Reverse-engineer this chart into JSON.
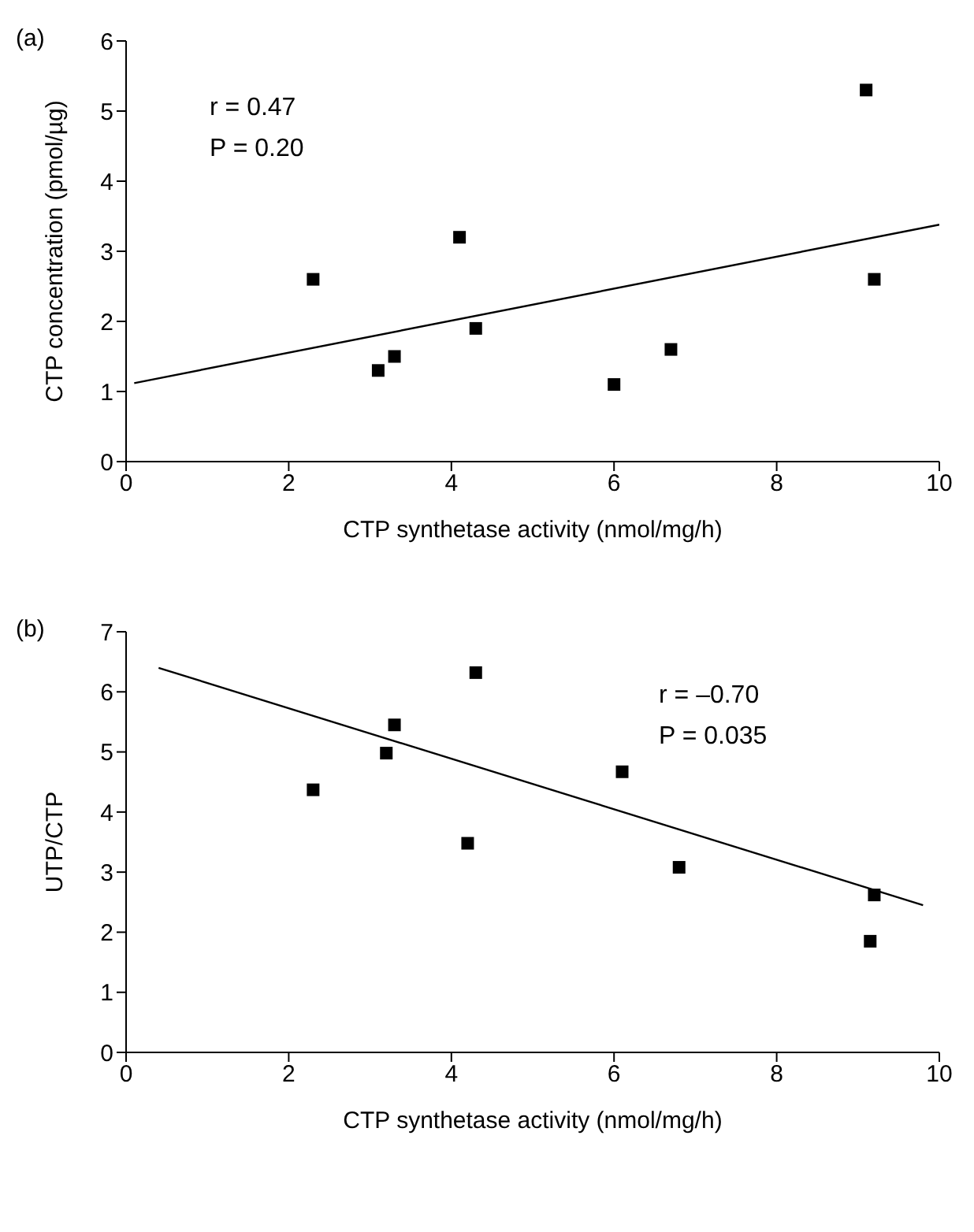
{
  "chart_data": [
    {
      "type": "scatter",
      "title": "(a)",
      "xlabel": "CTP synthetase activity (nmol/mg/h)",
      "ylabel": "CTP concentration (pmol/µg)",
      "annotations": [
        "r = 0.47",
        "P = 0.20"
      ],
      "xlim": [
        0,
        10
      ],
      "xticks": [
        0,
        2,
        4,
        6,
        8,
        10
      ],
      "ylim": [
        0,
        6
      ],
      "yticks": [
        0,
        1,
        2,
        3,
        4,
        5,
        6
      ],
      "grid": false,
      "series": [
        {
          "type": "scatter",
          "color": "#000000",
          "marker": "square",
          "x": [
            2.3,
            3.1,
            3.3,
            4.1,
            4.3,
            6.0,
            6.7,
            9.1,
            9.2
          ],
          "values": [
            2.6,
            1.3,
            1.5,
            3.2,
            1.9,
            1.1,
            1.6,
            5.3,
            2.6
          ]
        },
        {
          "type": "line",
          "color": "#000000",
          "marker": "none",
          "x": [
            0.1,
            10
          ],
          "values": [
            1.12,
            3.38
          ]
        }
      ]
    },
    {
      "type": "scatter",
      "title": "(b)",
      "xlabel": "CTP synthetase activity (nmol/mg/h)",
      "ylabel": "UTP/CTP",
      "annotations": [
        "r = –0.70",
        "P = 0.035"
      ],
      "xlim": [
        0,
        10
      ],
      "xticks": [
        0,
        2,
        4,
        6,
        8,
        10
      ],
      "ylim": [
        0,
        7
      ],
      "yticks": [
        0,
        1,
        2,
        3,
        4,
        5,
        6,
        7
      ],
      "grid": false,
      "series": [
        {
          "type": "scatter",
          "color": "#000000",
          "marker": "square",
          "x": [
            2.3,
            3.2,
            3.3,
            4.2,
            4.3,
            6.1,
            6.8,
            9.2,
            9.15
          ],
          "values": [
            4.37,
            4.98,
            5.45,
            3.48,
            6.32,
            4.67,
            3.08,
            2.62,
            1.85
          ]
        },
        {
          "type": "line",
          "color": "#000000",
          "marker": "none",
          "x": [
            0.4,
            9.8
          ],
          "values": [
            6.4,
            2.45
          ]
        }
      ]
    }
  ]
}
